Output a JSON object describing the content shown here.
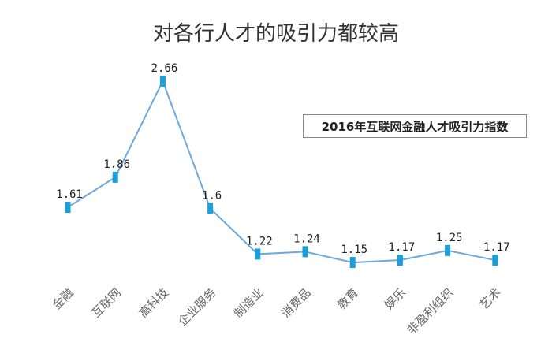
{
  "chart_data": {
    "type": "line",
    "title": "对各行人才的吸引力都较高",
    "legend_label": "2016年互联网金融人才吸引力指数",
    "legend_placement": "top-right",
    "categories": [
      "金融",
      "互联网",
      "高科技",
      "企业服务",
      "制造业",
      "消费品",
      "教育",
      "娱乐",
      "非盈利组织",
      "艺术"
    ],
    "series": [
      {
        "values": [
          1.61,
          1.86,
          2.66,
          1.6,
          1.22,
          1.24,
          1.15,
          1.17,
          1.25,
          1.17
        ],
        "labels": [
          "1.61",
          "1.86",
          "2.66",
          "1.6",
          "1.22",
          "1.24",
          "1.15",
          "1.17",
          "1.25",
          "1.17"
        ]
      }
    ],
    "grid": false,
    "colors": {
      "line": "#6fa8dc",
      "marker": "#1a9fd9"
    }
  }
}
